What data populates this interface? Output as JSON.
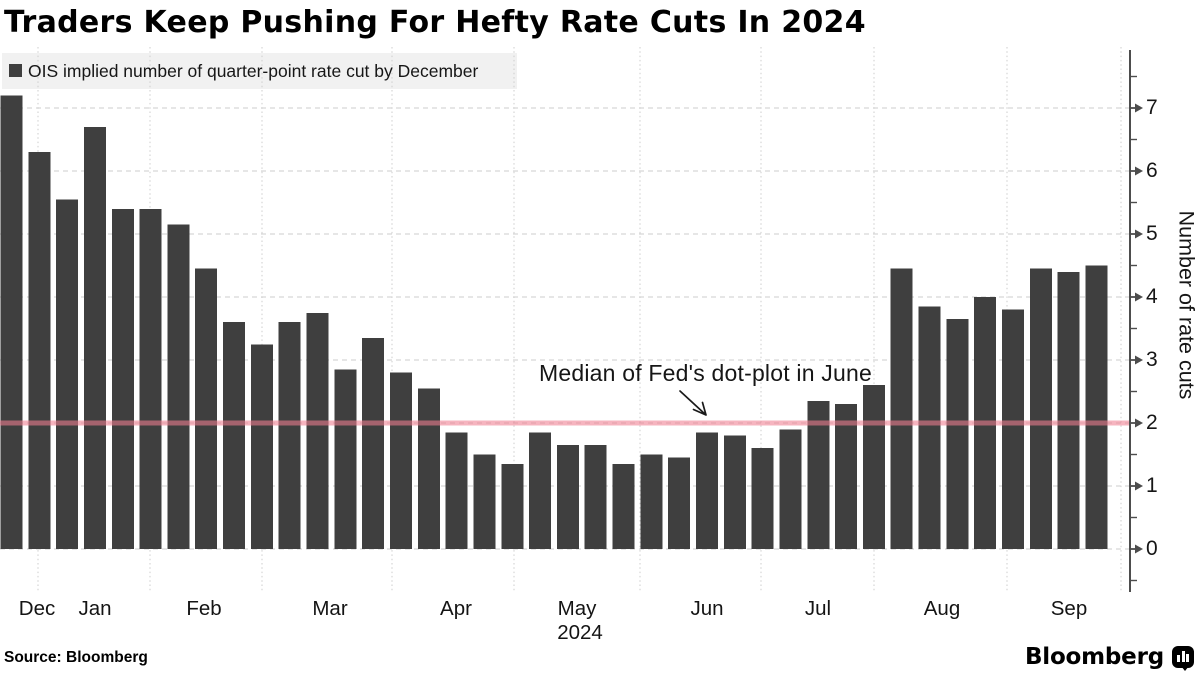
{
  "title": "Traders Keep Pushing For Hefty Rate Cuts In 2024",
  "legend": {
    "label": "OIS implied number of quarter-point rate cut by December",
    "swatch_color": "#3F3F3F",
    "background_color": "#F1F1F1"
  },
  "annotation": {
    "text": "Median of Fed's dot-plot in June"
  },
  "source_label": "Source: Bloomberg",
  "brand": {
    "wordmark": "Bloomberg",
    "icon": "bloomberg-chart-logo-icon"
  },
  "chart_data": {
    "type": "bar",
    "title": "Traders Keep Pushing For Hefty Rate Cuts In 2024",
    "series_name": "OIS implied number of quarter-point rate cut by December",
    "x_frequency": "weekly",
    "x_month_labels": [
      "Dec",
      "Jan",
      "Feb",
      "Mar",
      "Apr",
      "May",
      "Jun",
      "Jul",
      "Aug",
      "Sep"
    ],
    "year_label": "2024",
    "values": [
      7.2,
      6.3,
      5.55,
      6.7,
      5.4,
      5.4,
      5.15,
      4.45,
      3.6,
      3.25,
      3.6,
      3.75,
      2.85,
      3.35,
      2.8,
      2.55,
      1.85,
      1.5,
      1.35,
      1.85,
      1.65,
      1.65,
      1.35,
      1.5,
      1.45,
      1.85,
      1.8,
      1.6,
      1.9,
      2.35,
      2.3,
      2.6,
      4.45,
      3.85,
      3.65,
      4.0,
      3.8,
      4.45,
      4.4,
      4.5
    ],
    "ylabel": "Number of rate cuts",
    "yticks": [
      0,
      1,
      2,
      3,
      4,
      5,
      6,
      7
    ],
    "ylim": [
      -0.6,
      7.9
    ],
    "grid": true,
    "legend_position": "top-left",
    "reference_line": {
      "value": 2,
      "label": "Median of Fed's dot-plot in June",
      "color": "#F07D91"
    },
    "bar_color": "#3F3F3F",
    "gridline_color": "#CDCDCD",
    "axis_color": "#4D4D4D"
  }
}
